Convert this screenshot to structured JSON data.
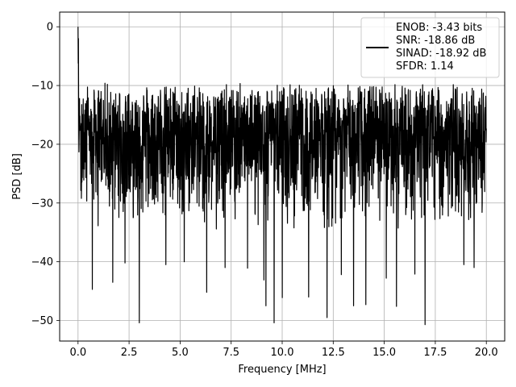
{
  "chart_data": {
    "type": "line",
    "title": "",
    "xlabel": "Frequency [MHz]",
    "ylabel": "PSD [dB]",
    "xlim": [
      -0.9,
      20.9
    ],
    "ylim": [
      -53.5,
      2.5
    ],
    "grid": true,
    "legend_placement": "top-right",
    "x_ticks": [
      0.0,
      2.5,
      5.0,
      7.5,
      10.0,
      12.5,
      15.0,
      17.5,
      20.0
    ],
    "x_tick_labels": [
      "0.0",
      "2.5",
      "5.0",
      "7.5",
      "10.0",
      "12.5",
      "15.0",
      "17.5",
      "20.0"
    ],
    "y_ticks": [
      0,
      -10,
      -20,
      -30,
      -40,
      -50
    ],
    "y_tick_labels": [
      "0",
      "−10",
      "−20",
      "−30",
      "−40",
      "−50"
    ],
    "legend": {
      "lines": [
        "ENOB: -3.43 bits",
        "SNR: -18.86 dB",
        "SINAD: -18.92 dB",
        "SFDR: 1.14"
      ]
    },
    "series": [
      {
        "color": "#000000",
        "peak": {
          "x": 0.0,
          "y": 0.0
        },
        "noise_floor_mean_y": -20,
        "noise_upper_envelope_y": -10,
        "noise_lower_envelope_y": -35,
        "x_range": [
          0.0,
          20.0
        ],
        "notable_dips": [
          {
            "x": 0.7,
            "y": -44.7
          },
          {
            "x": 1.7,
            "y": -43.5
          },
          {
            "x": 2.3,
            "y": -40.2
          },
          {
            "x": 3.0,
            "y": -50.4
          },
          {
            "x": 4.3,
            "y": -40.5
          },
          {
            "x": 5.2,
            "y": -40.0
          },
          {
            "x": 6.3,
            "y": -45.2
          },
          {
            "x": 7.2,
            "y": -41.0
          },
          {
            "x": 8.3,
            "y": -41.1
          },
          {
            "x": 9.1,
            "y": -43.1
          },
          {
            "x": 9.2,
            "y": -47.5
          },
          {
            "x": 9.6,
            "y": -50.4
          },
          {
            "x": 10.0,
            "y": -46.1
          },
          {
            "x": 11.3,
            "y": -46.0
          },
          {
            "x": 12.2,
            "y": -49.5
          },
          {
            "x": 12.9,
            "y": -42.2
          },
          {
            "x": 13.5,
            "y": -47.5
          },
          {
            "x": 14.1,
            "y": -47.3
          },
          {
            "x": 15.1,
            "y": -42.8
          },
          {
            "x": 15.6,
            "y": -47.6
          },
          {
            "x": 16.5,
            "y": -42.1
          },
          {
            "x": 17.0,
            "y": -50.7
          },
          {
            "x": 18.9,
            "y": -40.5
          },
          {
            "x": 19.4,
            "y": -41.0
          }
        ]
      }
    ]
  }
}
